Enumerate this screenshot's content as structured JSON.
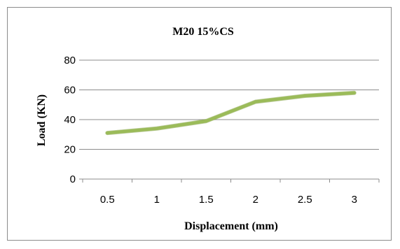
{
  "chart_data": {
    "type": "line",
    "title": "M20 15%CS",
    "xlabel": "Displacement (mm)",
    "ylabel": "Load (KN)",
    "categories": [
      "0.5",
      "1",
      "1.5",
      "2",
      "2.5",
      "3"
    ],
    "series": [
      {
        "values": [
          31,
          34,
          39,
          52,
          56,
          58
        ],
        "color": "#9bbb59"
      }
    ],
    "ylim": [
      0,
      80
    ],
    "yticks": [
      0,
      20,
      40,
      60,
      80
    ],
    "grid": true,
    "legend": "none"
  }
}
